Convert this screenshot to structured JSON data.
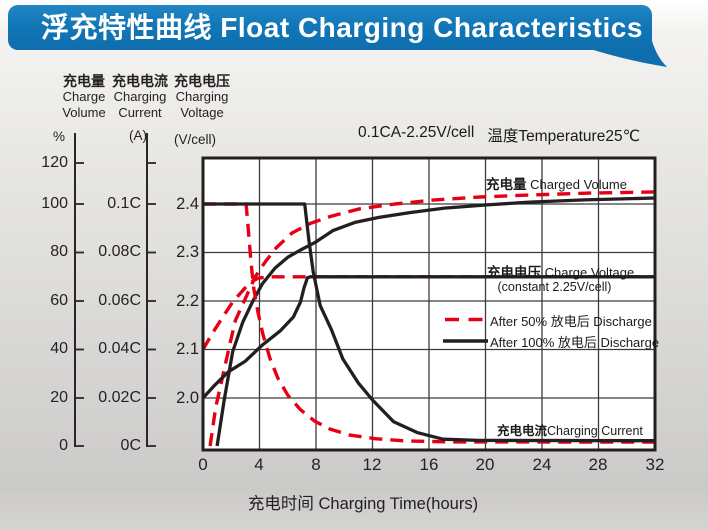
{
  "banner": {
    "title": "浮充特性曲线 Float Charging Characteristics",
    "color": "#1277b7"
  },
  "condition": {
    "part1": "0.1CA-2.25V/cell",
    "part2": "温度Temperature25℃"
  },
  "y_axes": {
    "volume": {
      "title_zh": "充电量",
      "title_en1": "Charge",
      "title_en2": "Volume",
      "unit": "%",
      "ticks": [
        "120",
        "100",
        "80",
        "60",
        "40",
        "20",
        "0"
      ]
    },
    "current": {
      "title_zh": "充电电流",
      "title_en1": "Charging",
      "title_en2": "Current",
      "unit": "(A)",
      "ticks": [
        "0.1C",
        "0.08C",
        "0.06C",
        "0.04C",
        "0.02C",
        "0C"
      ]
    },
    "voltage": {
      "title_zh": "充电电压",
      "title_en1": "Charging",
      "title_en2": "Voltage",
      "unit": "(V/cell)",
      "ticks": [
        "2.4",
        "2.3",
        "2.2",
        "2.1",
        "2.0"
      ]
    }
  },
  "x_axis": {
    "title": "充电时间 Charging Time(hours)",
    "title_zh": "充电时间",
    "title_en": "Charging Time(hours)",
    "ticks": [
      "0",
      "4",
      "8",
      "12",
      "16",
      "20",
      "24",
      "28",
      "32"
    ]
  },
  "labels": {
    "volume_zh": "充电量",
    "volume_en": "Charged Volume",
    "voltage_zh": "充电电压",
    "voltage_en": "Charge Voltage",
    "voltage_sub": "(constant 2.25V/cell)",
    "current_zh": "充电电流",
    "current_en": "Charging Current"
  },
  "legend": [
    {
      "label": "After 50%  放电后 Discharge",
      "color": "#e60014",
      "style": "dashed"
    },
    {
      "label": "After 100%  放电后 Discharge",
      "color": "#231f20",
      "style": "solid"
    }
  ],
  "chart_data": {
    "type": "line",
    "title": "浮充特性曲线 Float Charging Characteristics",
    "condition": "0.1CA-2.25V/cell 温度Temperature25℃",
    "grid": true,
    "legend_position": "middle-right",
    "x": {
      "label": "充电时间 Charging Time(hours)",
      "unit": "hours",
      "range": [
        0,
        32
      ],
      "ticks": [
        0,
        4,
        8,
        12,
        16,
        20,
        24,
        28,
        32
      ]
    },
    "y_axes": [
      {
        "id": "volume",
        "label": "充电量 Charge Volume",
        "unit": "%",
        "range": [
          0,
          120
        ],
        "ticks": [
          0,
          20,
          40,
          60,
          80,
          100,
          120
        ]
      },
      {
        "id": "current",
        "label": "充电电流 Charging Current",
        "unit": "CA",
        "range": [
          0,
          0.12
        ],
        "ticks": [
          0,
          0.02,
          0.04,
          0.06,
          0.08,
          0.1
        ]
      },
      {
        "id": "voltage",
        "label": "充电电压 Charging Voltage",
        "unit": "V/cell",
        "range": [
          1.95,
          2.45
        ],
        "ticks": [
          2.0,
          2.1,
          2.2,
          2.3,
          2.4
        ]
      }
    ],
    "series": [
      {
        "name": "Charged Volume after 50% discharge",
        "axis": "volume",
        "style": "dashed",
        "color": "#e60014",
        "points": [
          [
            0.5,
            0
          ],
          [
            0.9,
            16
          ],
          [
            1.4,
            29
          ],
          [
            1.9,
            42
          ],
          [
            2.3,
            52
          ],
          [
            3,
            61
          ],
          [
            3.7,
            70
          ],
          [
            4.4,
            76
          ],
          [
            5.2,
            82
          ],
          [
            6.3,
            88
          ],
          [
            7.6,
            92
          ],
          [
            9.1,
            95
          ],
          [
            11.1,
            98
          ],
          [
            13.6,
            100
          ],
          [
            16.4,
            101.7
          ],
          [
            19.6,
            102.9
          ],
          [
            23.1,
            103.7
          ],
          [
            27.4,
            104.5
          ],
          [
            32,
            105
          ]
        ]
      },
      {
        "name": "Charged Volume after 100% discharge",
        "axis": "volume",
        "style": "solid",
        "color": "#231f20",
        "points": [
          [
            1,
            0
          ],
          [
            1.5,
            19
          ],
          [
            2.1,
            39
          ],
          [
            2.8,
            51
          ],
          [
            3.5,
            59.5
          ],
          [
            4.2,
            67
          ],
          [
            5.1,
            73.5
          ],
          [
            6,
            78
          ],
          [
            6.9,
            81
          ],
          [
            7.9,
            84
          ],
          [
            9.2,
            89
          ],
          [
            10.8,
            92.5
          ],
          [
            12.5,
            94.5
          ],
          [
            14.7,
            96.5
          ],
          [
            17.1,
            98.3
          ],
          [
            20,
            99.6
          ],
          [
            23.1,
            100.8
          ],
          [
            27,
            101.7
          ],
          [
            32,
            102.5
          ]
        ]
      },
      {
        "name": "Charge Voltage after 50% discharge",
        "axis": "voltage",
        "style": "dashed",
        "color": "#e60014",
        "points": [
          [
            0,
            2.1
          ],
          [
            0.7,
            2.135
          ],
          [
            1.4,
            2.167
          ],
          [
            2.1,
            2.198
          ],
          [
            2.8,
            2.221
          ],
          [
            3.3,
            2.238
          ],
          [
            3.9,
            2.247
          ],
          [
            4.6,
            2.25
          ],
          [
            32,
            2.25
          ]
        ]
      },
      {
        "name": "Charge Voltage after 100% discharge",
        "axis": "voltage",
        "style": "solid",
        "color": "#231f20",
        "points": [
          [
            0,
            2.0
          ],
          [
            0.85,
            2.027
          ],
          [
            1.8,
            2.054
          ],
          [
            3,
            2.076
          ],
          [
            4.2,
            2.109
          ],
          [
            5.45,
            2.138
          ],
          [
            6.4,
            2.167
          ],
          [
            6.9,
            2.198
          ],
          [
            7.15,
            2.227
          ],
          [
            7.4,
            2.248
          ],
          [
            7.6,
            2.25
          ],
          [
            32,
            2.25
          ]
        ]
      },
      {
        "name": "Charging Current after 50% discharge",
        "axis": "current",
        "style": "dashed",
        "color": "#e60014",
        "points": [
          [
            0,
            0.1
          ],
          [
            3.05,
            0.1
          ],
          [
            3.2,
            0.09
          ],
          [
            3.4,
            0.076
          ],
          [
            3.6,
            0.065
          ],
          [
            3.9,
            0.055
          ],
          [
            4.25,
            0.046
          ],
          [
            4.75,
            0.036
          ],
          [
            5.3,
            0.028
          ],
          [
            6,
            0.021
          ],
          [
            6.9,
            0.015
          ],
          [
            7.9,
            0.0103
          ],
          [
            9,
            0.007
          ],
          [
            10.4,
            0.0045
          ],
          [
            12.2,
            0.003
          ],
          [
            14.3,
            0.0021
          ],
          [
            17.5,
            0.0017
          ],
          [
            32,
            0.0016
          ]
        ]
      },
      {
        "name": "Charging Current after 100% discharge",
        "axis": "current",
        "style": "solid",
        "color": "#231f20",
        "points": [
          [
            0,
            0.1
          ],
          [
            7.2,
            0.1
          ],
          [
            7.5,
            0.085
          ],
          [
            7.8,
            0.072
          ],
          [
            8.3,
            0.058
          ],
          [
            9.1,
            0.048
          ],
          [
            9.9,
            0.036
          ],
          [
            11,
            0.026
          ],
          [
            12,
            0.019
          ],
          [
            13.5,
            0.01
          ],
          [
            15.2,
            0.0055
          ],
          [
            17,
            0.0028
          ],
          [
            19.5,
            0.0023
          ],
          [
            32,
            0.0022
          ]
        ]
      }
    ]
  }
}
